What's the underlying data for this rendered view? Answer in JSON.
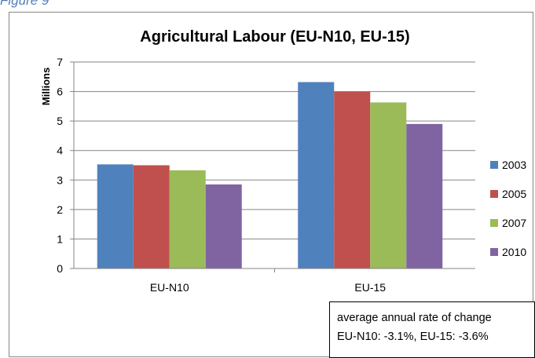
{
  "figure_caption": "Figure 9",
  "chart_data": {
    "type": "bar",
    "title": "Agricultural Labour (EU-N10, EU-15)",
    "ylabel": "Millions",
    "xlabel": "",
    "categories": [
      "EU-N10",
      "EU-15"
    ],
    "series": [
      {
        "name": "2003",
        "color": "#4f81bd",
        "values": [
          3.53,
          6.32
        ]
      },
      {
        "name": "2005",
        "color": "#c0504d",
        "values": [
          3.5,
          6.0
        ]
      },
      {
        "name": "2007",
        "color": "#9bbb59",
        "values": [
          3.33,
          5.63
        ]
      },
      {
        "name": "2010",
        "color": "#8064a2",
        "values": [
          2.85,
          4.9
        ]
      }
    ],
    "ylim": [
      0,
      7
    ],
    "yticks": [
      "0",
      "1",
      "2",
      "3",
      "4",
      "5",
      "6",
      "7"
    ],
    "grid": true,
    "legend_position": "right"
  },
  "annotation": {
    "line1": "average annual rate of change",
    "line2": "EU-N10: -3.1%,  EU-15: -3.6%"
  }
}
